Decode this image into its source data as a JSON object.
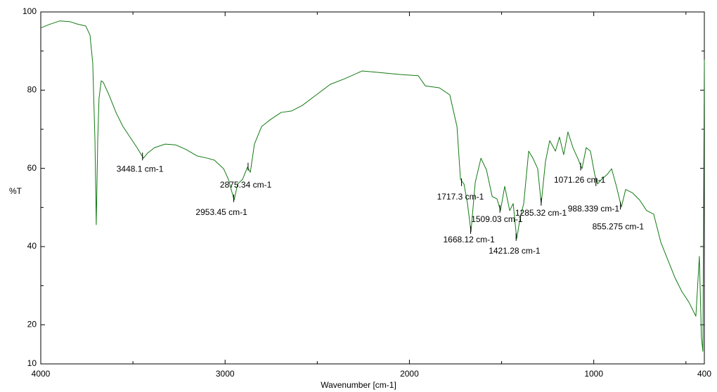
{
  "chart_data": {
    "type": "line",
    "x_label": "Wavenumber [cm-1]",
    "y_label": "%T",
    "xlim": [
      4000,
      400
    ],
    "ylim": [
      10,
      100
    ],
    "xticks": [
      4000,
      3000,
      2000,
      1000,
      400
    ],
    "yticks": [
      10,
      20,
      40,
      60,
      80,
      100
    ],
    "xminorticks": [
      3500,
      2500,
      1500,
      500
    ],
    "yminorticks": [
      30,
      50,
      70,
      90
    ],
    "x": [
      4000,
      3954,
      3897,
      3840,
      3802,
      3756,
      3733,
      3718,
      3706,
      3699,
      3691,
      3684,
      3672,
      3661,
      3630,
      3592,
      3554,
      3516,
      3478,
      3443,
      3421,
      3382,
      3325,
      3268,
      3211,
      3153,
      3096,
      3058,
      3008,
      2982,
      2951,
      2932,
      2905,
      2879,
      2863,
      2841,
      2802,
      2753,
      2696,
      2638,
      2581,
      2505,
      2429,
      2352,
      2257,
      2162,
      2047,
      1952,
      1914,
      1838,
      1781,
      1742,
      1723,
      1704,
      1685,
      1666,
      1643,
      1612,
      1582,
      1551,
      1525,
      1506,
      1483,
      1456,
      1437,
      1418,
      1399,
      1380,
      1353,
      1330,
      1304,
      1285,
      1262,
      1239,
      1208,
      1186,
      1163,
      1140,
      1113,
      1087,
      1064,
      1041,
      1018,
      995,
      980,
      957,
      926,
      903,
      877,
      850,
      827,
      789,
      751,
      713,
      675,
      636,
      598,
      560,
      522,
      484,
      446,
      427,
      416,
      408,
      400
    ],
    "series": [
      {
        "color": "#137a13",
        "values": [
          95.9,
          96.8,
          97.7,
          97.5,
          96.9,
          96.4,
          94.1,
          86.9,
          67.1,
          45.6,
          67.1,
          77.9,
          82.4,
          82.0,
          78.8,
          74.3,
          70.7,
          68.0,
          65.3,
          62.6,
          63.9,
          65.3,
          66.2,
          66.0,
          64.8,
          63.2,
          62.6,
          62.1,
          59.9,
          57.2,
          51.9,
          56.0,
          57.2,
          60.3,
          59.0,
          66.2,
          70.7,
          72.5,
          74.3,
          74.7,
          76.1,
          78.8,
          81.5,
          82.9,
          84.9,
          84.5,
          84.0,
          83.7,
          81.1,
          80.6,
          78.8,
          70.7,
          57.2,
          56.0,
          51.0,
          43.8,
          56.4,
          62.6,
          59.6,
          52.8,
          52.2,
          49.2,
          55.4,
          49.2,
          51.0,
          42.0,
          47.4,
          51.0,
          64.4,
          62.6,
          59.9,
          51.0,
          61.7,
          67.1,
          64.4,
          68.0,
          63.5,
          69.3,
          65.3,
          62.6,
          59.9,
          65.3,
          64.4,
          58.5,
          56.0,
          57.2,
          58.5,
          59.9,
          55.4,
          50.1,
          54.6,
          53.7,
          51.9,
          49.2,
          48.3,
          41.1,
          36.6,
          32.1,
          28.5,
          25.8,
          22.2,
          37.5,
          16.8,
          13.2,
          87.8
        ]
      }
    ],
    "annotations": [
      {
        "text": "3448.1 cm-1",
        "x": 3448.1,
        "y": 62.6
      },
      {
        "text": "2875.34 cm-1",
        "x": 2875.34,
        "y": 60
      },
      {
        "text": "2953.45 cm-1",
        "x": 2953.45,
        "y": 51.9
      },
      {
        "text": "1717.3 cm-1",
        "x": 1717.3,
        "y": 56
      },
      {
        "text": "1668.12 cm-1",
        "x": 1668.12,
        "y": 43.8
      },
      {
        "text": "1509.03 cm-1",
        "x": 1509.03,
        "y": 49.2
      },
      {
        "text": "1421.28 cm-1",
        "x": 1421.28,
        "y": 42
      },
      {
        "text": "1285.32 cm-1",
        "x": 1285.32,
        "y": 51
      },
      {
        "text": "1071.26 cm-1",
        "x": 1071.26,
        "y": 60
      },
      {
        "text": "988.339 cm-1",
        "x": 988.339,
        "y": 56
      },
      {
        "text": "855.275 cm-1",
        "x": 855.275,
        "y": 50
      }
    ]
  }
}
